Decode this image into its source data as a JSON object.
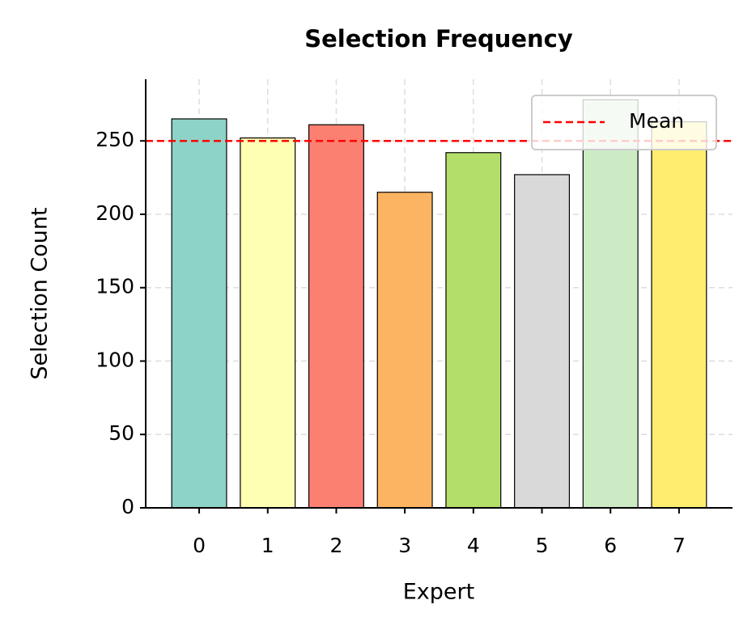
{
  "chart_data": {
    "type": "bar",
    "title": "Selection Frequency",
    "x_label": "Expert",
    "y_label": "Selection Count",
    "categories": [
      "0",
      "1",
      "2",
      "3",
      "4",
      "5",
      "6",
      "7"
    ],
    "values": [
      265,
      252,
      261,
      215,
      242,
      227,
      278,
      263
    ],
    "colors": [
      "#8dd3c7",
      "#ffffb3",
      "#fb8072",
      "#fdb462",
      "#b3de69",
      "#d9d9d9",
      "#ccebc5",
      "#ffed6f"
    ],
    "ylim": [
      0,
      292
    ],
    "yticks": [
      0,
      50,
      100,
      150,
      200,
      250
    ],
    "grid": true,
    "reference_lines": [
      {
        "name": "Mean",
        "value": 250,
        "color": "#ff0000"
      }
    ],
    "legend_position": "upper right"
  }
}
